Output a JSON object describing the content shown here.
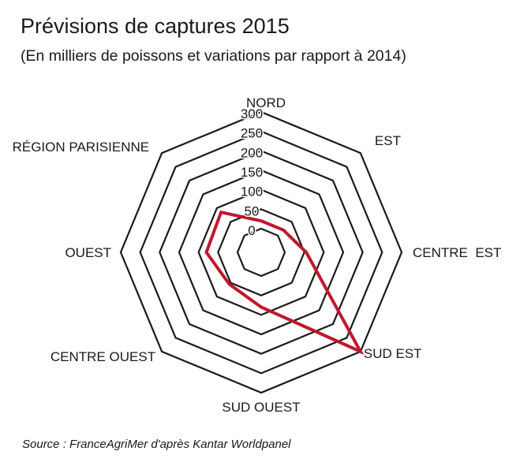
{
  "title": "Prévisions de captures 2015",
  "subtitle": "(En milliers de poissons et variations par rapport à 2014)",
  "source": "Source : FranceAgriMer d'après Kantar Worldpanel",
  "colors": {
    "grid": "#1a1a1a",
    "series": "#c0182e",
    "text": "#1a1a1a"
  },
  "chart_data": {
    "type": "radar",
    "categories": [
      "NORD",
      "EST",
      "CENTRE  EST",
      "SUD EST",
      "SUD OUEST",
      "CENTRE OUEST",
      "OUEST",
      "RÉGION PARISIENNE"
    ],
    "ticks": [
      0,
      50,
      100,
      150,
      200,
      250,
      300
    ],
    "tick_labels": [
      "0",
      "50",
      "100",
      "150",
      "200",
      "250",
      "300"
    ],
    "range": [
      0,
      300
    ],
    "grid": true,
    "series": [
      {
        "values": [
          20,
          20,
          55,
          300,
          80,
          55,
          80,
          85
        ]
      }
    ]
  }
}
